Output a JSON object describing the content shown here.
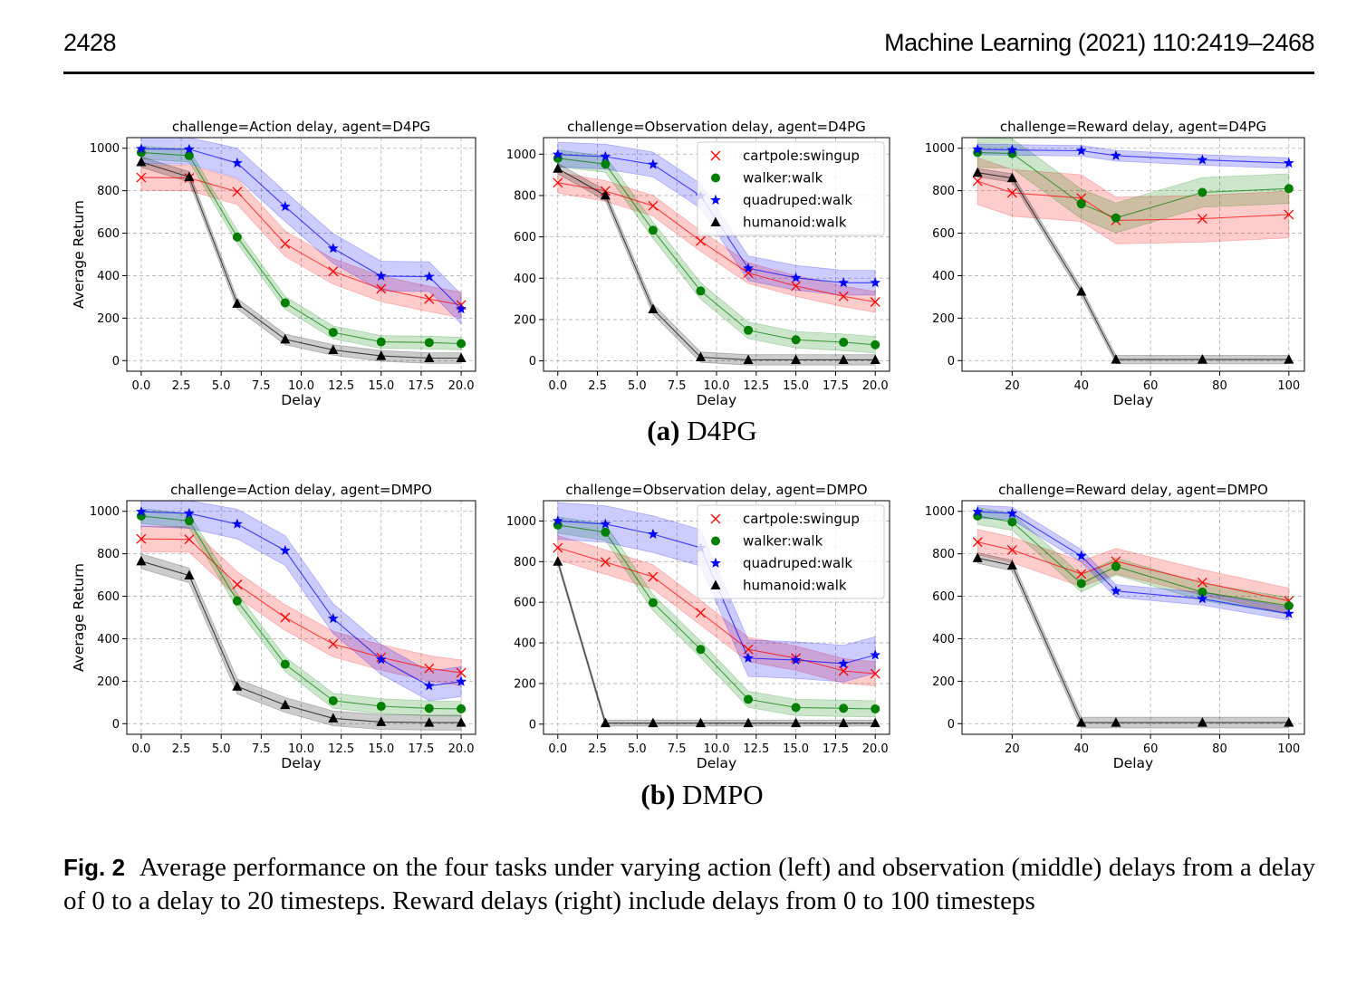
{
  "header": {
    "page_number": "2428",
    "journal_ref": "Machine Learning (2021) 110:2419–2468"
  },
  "subcaptions": [
    {
      "label": "(a)",
      "text": "D4PG"
    },
    {
      "label": "(b)",
      "text": "DMPO"
    }
  ],
  "caption": {
    "label": "Fig. 2",
    "text": "Average performance on the four tasks under varying action (left) and observation (middle) delays from a delay of 0 to a delay to 20 timesteps. Reward delays (right) include delays from 0 to 100 timesteps"
  },
  "legend_entries": [
    "cartpole:swingup",
    "walker:walk",
    "quadruped:walk",
    "humanoid:walk"
  ],
  "colors": {
    "cartpole": "#ff0000",
    "walker": "#008000",
    "quadruped": "#0000ff",
    "humanoid": "#000000"
  },
  "chart_data": [
    {
      "type": "line",
      "title": "challenge=Action delay, agent=D4PG",
      "xlabel": "Delay",
      "ylabel": "Average Return",
      "x": [
        0,
        3,
        6,
        9,
        12,
        15,
        18,
        20
      ],
      "xlim": [
        -0.9,
        20.9
      ],
      "ylim": [
        -50,
        1050
      ],
      "xticks": [
        0,
        2.5,
        5,
        7.5,
        10,
        12.5,
        15,
        17.5,
        20
      ],
      "xtick_labels": [
        "0.0",
        "2.5",
        "5.0",
        "7.5",
        "10.0",
        "12.5",
        "15.0",
        "17.5",
        "20.0"
      ],
      "yticks": [
        0,
        200,
        400,
        600,
        800,
        1000
      ],
      "ytick_labels": [
        "0",
        "200",
        "400",
        "600",
        "800",
        "1000"
      ],
      "grid": true,
      "legend": "none",
      "series": [
        {
          "name": "cartpole:swingup",
          "marker": "x",
          "values": [
            862,
            860,
            795,
            550,
            420,
            338,
            290,
            262
          ],
          "band": 60
        },
        {
          "name": "walker:walk",
          "marker": "o",
          "values": [
            980,
            965,
            582,
            272,
            133,
            88,
            85,
            80
          ],
          "band": 30
        },
        {
          "name": "quadruped:walk",
          "marker": "*",
          "values": [
            997,
            995,
            930,
            725,
            528,
            398,
            395,
            243
          ],
          "band": 70
        },
        {
          "name": "humanoid:walk",
          "marker": "^",
          "values": [
            935,
            865,
            268,
            100,
            50,
            22,
            12,
            12
          ],
          "band": 25
        }
      ]
    },
    {
      "type": "line",
      "title": "challenge=Observation delay, agent=D4PG",
      "xlabel": "Delay",
      "ylabel": "",
      "x": [
        0,
        3,
        6,
        9,
        12,
        15,
        18,
        20
      ],
      "xlim": [
        -0.9,
        20.9
      ],
      "ylim": [
        -50,
        1080
      ],
      "xticks": [
        0,
        2.5,
        5,
        7.5,
        10,
        12.5,
        15,
        17.5,
        20
      ],
      "xtick_labels": [
        "0.0",
        "2.5",
        "5.0",
        "7.5",
        "10.0",
        "12.5",
        "15.0",
        "17.5",
        "20.0"
      ],
      "yticks": [
        0,
        200,
        400,
        600,
        800,
        1000
      ],
      "ytick_labels": [
        "0",
        "200",
        "400",
        "600",
        "800",
        "1000"
      ],
      "grid": true,
      "legend": "upper right",
      "series": [
        {
          "name": "cartpole:swingup",
          "marker": "x",
          "values": [
            862,
            822,
            750,
            580,
            425,
            362,
            312,
            285
          ],
          "band": 50
        },
        {
          "name": "walker:walk",
          "marker": "o",
          "values": [
            980,
            952,
            632,
            338,
            148,
            102,
            90,
            78
          ],
          "band": 40
        },
        {
          "name": "quadruped:walk",
          "marker": "*",
          "values": [
            998,
            988,
            950,
            798,
            448,
            402,
            378,
            378
          ],
          "band": 60
        },
        {
          "name": "humanoid:walk",
          "marker": "^",
          "values": [
            930,
            800,
            250,
            18,
            5,
            5,
            5,
            5
          ],
          "band": 25
        }
      ]
    },
    {
      "type": "line",
      "title": "challenge=Reward delay, agent=D4PG",
      "xlabel": "Delay",
      "ylabel": "",
      "x": [
        10,
        20,
        40,
        50,
        75,
        100
      ],
      "xlim": [
        5.5,
        104.5
      ],
      "ylim": [
        -50,
        1050
      ],
      "xticks": [
        20,
        40,
        60,
        80,
        100
      ],
      "xtick_labels": [
        "20",
        "40",
        "60",
        "80",
        "100"
      ],
      "yticks": [
        0,
        200,
        400,
        600,
        800,
        1000
      ],
      "ytick_labels": [
        "0",
        "200",
        "400",
        "600",
        "800",
        "1000"
      ],
      "grid": true,
      "legend": "none",
      "series": [
        {
          "name": "cartpole:swingup",
          "marker": "x",
          "values": [
            845,
            790,
            765,
            660,
            668,
            688
          ],
          "band": 110
        },
        {
          "name": "walker:walk",
          "marker": "o",
          "values": [
            980,
            975,
            738,
            672,
            792,
            810
          ],
          "band": 70
        },
        {
          "name": "quadruped:walk",
          "marker": "*",
          "values": [
            995,
            992,
            988,
            965,
            945,
            930
          ],
          "band": 25
        },
        {
          "name": "humanoid:walk",
          "marker": "^",
          "values": [
            885,
            860,
            325,
            5,
            5,
            5
          ],
          "band": 20
        }
      ]
    },
    {
      "type": "line",
      "title": "challenge=Action delay, agent=DMPO",
      "xlabel": "Delay",
      "ylabel": "Average Return",
      "x": [
        0,
        3,
        6,
        9,
        12,
        15,
        18,
        20
      ],
      "xlim": [
        -0.9,
        20.9
      ],
      "ylim": [
        -50,
        1050
      ],
      "xticks": [
        0,
        2.5,
        5,
        7.5,
        10,
        12.5,
        15,
        17.5,
        20
      ],
      "xtick_labels": [
        "0.0",
        "2.5",
        "5.0",
        "7.5",
        "10.0",
        "12.5",
        "15.0",
        "17.5",
        "20.0"
      ],
      "yticks": [
        0,
        200,
        400,
        600,
        800,
        1000
      ],
      "ytick_labels": [
        "0",
        "200",
        "400",
        "600",
        "800",
        "1000"
      ],
      "grid": true,
      "legend": "none",
      "series": [
        {
          "name": "cartpole:swingup",
          "marker": "x",
          "values": [
            870,
            868,
            655,
            500,
            375,
            312,
            260,
            240
          ],
          "band": 60
        },
        {
          "name": "walker:walk",
          "marker": "o",
          "values": [
            978,
            955,
            578,
            280,
            108,
            82,
            72,
            70
          ],
          "band": 35
        },
        {
          "name": "quadruped:walk",
          "marker": "*",
          "values": [
            998,
            990,
            940,
            815,
            495,
            302,
            178,
            198
          ],
          "band": 70
        },
        {
          "name": "humanoid:walk",
          "marker": "^",
          "values": [
            765,
            698,
            175,
            88,
            25,
            8,
            5,
            5
          ],
          "band": 35
        }
      ]
    },
    {
      "type": "line",
      "title": "challenge=Observation delay, agent=DMPO",
      "xlabel": "Delay",
      "ylabel": "",
      "x": [
        0,
        3,
        6,
        9,
        12,
        15,
        18,
        20
      ],
      "xlim": [
        -0.9,
        20.9
      ],
      "ylim": [
        -50,
        1100
      ],
      "xticks": [
        0,
        2.5,
        5,
        7.5,
        10,
        12.5,
        15,
        17.5,
        20
      ],
      "xtick_labels": [
        "0.0",
        "2.5",
        "5.0",
        "7.5",
        "10.0",
        "12.5",
        "15.0",
        "17.5",
        "20.0"
      ],
      "yticks": [
        0,
        200,
        400,
        600,
        800,
        1000
      ],
      "ytick_labels": [
        "0",
        "200",
        "400",
        "600",
        "800",
        "1000"
      ],
      "grid": true,
      "legend": "upper right",
      "series": [
        {
          "name": "cartpole:swingup",
          "marker": "x",
          "values": [
            868,
            798,
            725,
            548,
            368,
            325,
            262,
            248
          ],
          "band": 60
        },
        {
          "name": "walker:walk",
          "marker": "o",
          "values": [
            980,
            945,
            598,
            368,
            122,
            82,
            78,
            75
          ],
          "band": 40
        },
        {
          "name": "quadruped:walk",
          "marker": "*",
          "values": [
            1000,
            985,
            935,
            868,
            325,
            315,
            298,
            340
          ],
          "band": 90
        },
        {
          "name": "humanoid:walk",
          "marker": "^",
          "values": [
            800,
            5,
            5,
            5,
            5,
            5,
            5,
            5
          ],
          "band": 15
        }
      ]
    },
    {
      "type": "line",
      "title": "challenge=Reward delay, agent=DMPO",
      "xlabel": "Delay",
      "ylabel": "",
      "x": [
        10,
        20,
        40,
        50,
        75,
        100
      ],
      "xlim": [
        5.5,
        104.5
      ],
      "ylim": [
        -50,
        1050
      ],
      "xticks": [
        20,
        40,
        60,
        80,
        100
      ],
      "xtick_labels": [
        "20",
        "40",
        "60",
        "80",
        "100"
      ],
      "yticks": [
        0,
        200,
        400,
        600,
        800,
        1000
      ],
      "ytick_labels": [
        "0",
        "200",
        "400",
        "600",
        "800",
        "1000"
      ],
      "grid": true,
      "legend": "none",
      "series": [
        {
          "name": "cartpole:swingup",
          "marker": "x",
          "values": [
            855,
            818,
            705,
            765,
            665,
            578
          ],
          "band": 60
        },
        {
          "name": "walker:walk",
          "marker": "o",
          "values": [
            978,
            950,
            660,
            740,
            620,
            555
          ],
          "band": 40
        },
        {
          "name": "quadruped:walk",
          "marker": "*",
          "values": [
            998,
            990,
            790,
            625,
            588,
            518
          ],
          "band": 30
        },
        {
          "name": "humanoid:walk",
          "marker": "^",
          "values": [
            780,
            745,
            5,
            5,
            5,
            5
          ],
          "band": 25
        }
      ]
    }
  ]
}
